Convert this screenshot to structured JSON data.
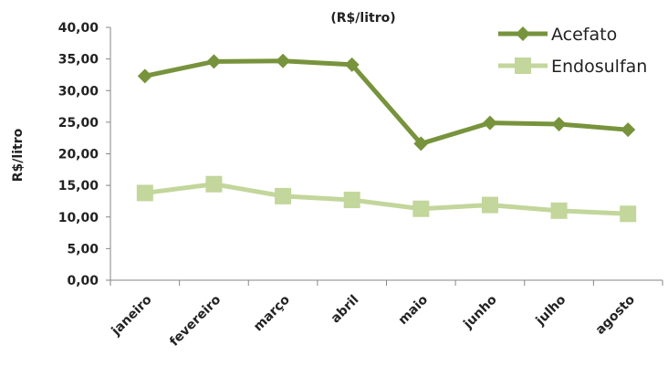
{
  "chart_data": {
    "type": "line",
    "title": "",
    "subtitle": "(R$/litro)",
    "xlabel": "",
    "ylabel": "R$/litro",
    "categories": [
      "janeiro",
      "fevereiro",
      "março",
      "abril",
      "maio",
      "junho",
      "julho",
      "agosto"
    ],
    "ylim": [
      0,
      40
    ],
    "yticks": [
      0,
      5,
      10,
      15,
      20,
      25,
      30,
      35,
      40
    ],
    "ytick_labels": [
      "0,00",
      "5,00",
      "10,00",
      "15,00",
      "20,00",
      "25,00",
      "30,00",
      "35,00",
      "40,00"
    ],
    "grid": false,
    "legend_position": "top-right",
    "series": [
      {
        "name": "Acefato",
        "marker": "diamond",
        "color": "#77933c",
        "values": [
          32.3,
          34.6,
          34.7,
          34.1,
          21.6,
          24.9,
          24.7,
          23.8
        ]
      },
      {
        "name": "Endosulfan",
        "marker": "square",
        "color": "#c3d69b",
        "values": [
          13.8,
          15.2,
          13.3,
          12.7,
          11.3,
          11.9,
          11.0,
          10.5
        ]
      }
    ]
  }
}
